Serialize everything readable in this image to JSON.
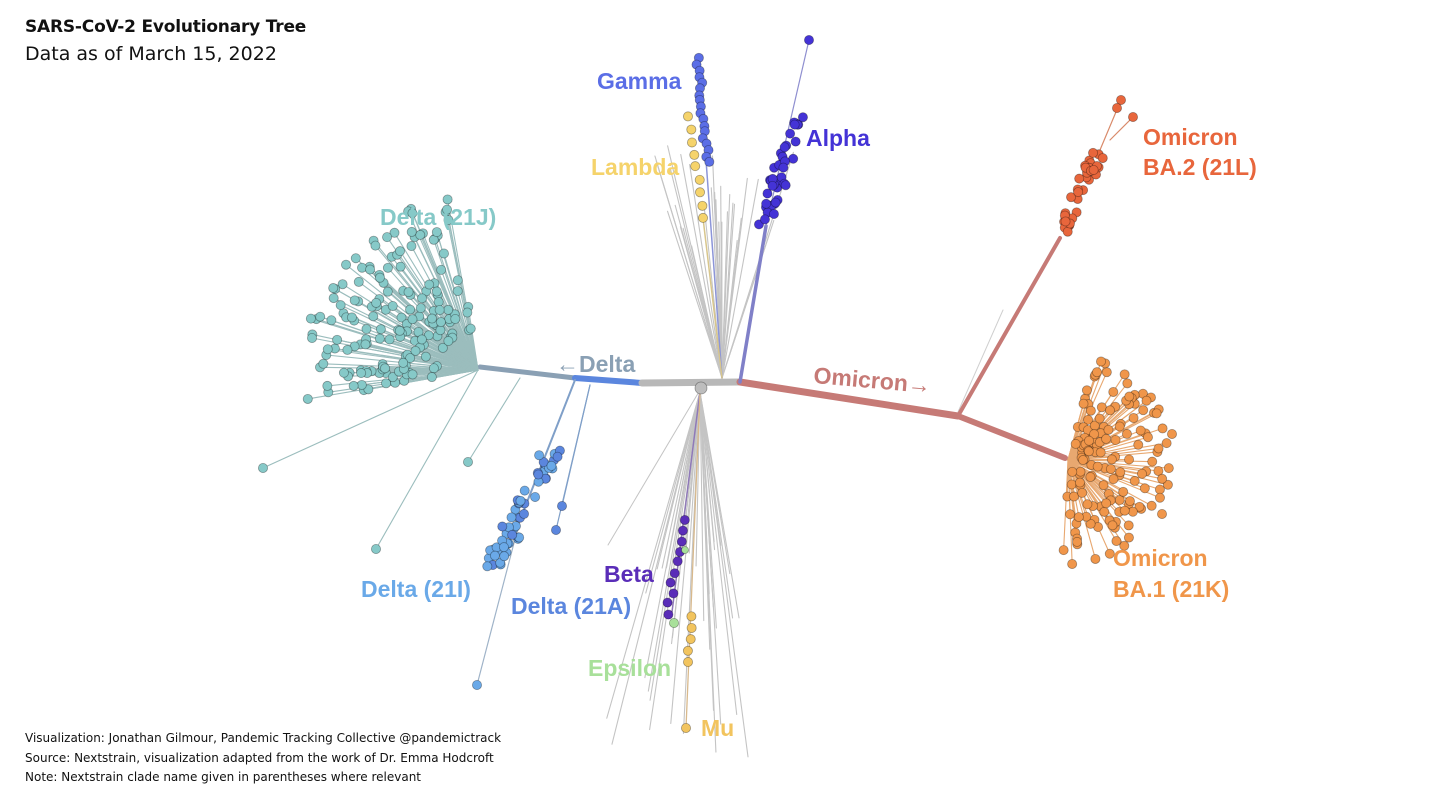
{
  "header": {
    "title": "SARS-CoV-2 Evolutionary Tree",
    "subtitle": "Data as of March 15, 2022"
  },
  "footer": {
    "visualization": "Visualization: Jonathan Gilmour, Pandemic Tracking Collective @pandemictrack",
    "source": "Source: Nextstrain, visualization adapted from the work of Dr. Emma Hodcroft",
    "note": "Note: Nextstrain clade name given in parentheses where relevant"
  },
  "branch_labels": {
    "delta": "←Delta",
    "omicron": "Omicron→"
  },
  "clades": {
    "gamma": {
      "label": "Gamma",
      "color": "#5b6ee6"
    },
    "lambda": {
      "label": "Lambda",
      "color": "#f5d36b"
    },
    "alpha": {
      "label": "Alpha",
      "color": "#4433d6"
    },
    "delta_21j": {
      "label": "Delta (21J)",
      "color": "#86c9c8"
    },
    "delta_21i": {
      "label": "Delta (21I)",
      "color": "#6aa9e8"
    },
    "delta_21a": {
      "label": "Delta (21A)",
      "color": "#5b86de"
    },
    "beta": {
      "label": "Beta",
      "color": "#5a2db8"
    },
    "epsilon": {
      "label": "Epsilon",
      "color": "#a8e09a"
    },
    "mu": {
      "label": "Mu",
      "color": "#f2c45e"
    },
    "omicron_ba2": {
      "line1": "Omicron",
      "line2": "BA.2 (21L)",
      "color": "#e8663c"
    },
    "omicron_ba1": {
      "line1": "Omicron",
      "line2": "BA.1 (21K)",
      "color": "#f0964a"
    }
  },
  "colors": {
    "trunk": "#b8b8b8",
    "delta_branch": "#8aa0b4",
    "omicron_branch": "#c67a76"
  }
}
